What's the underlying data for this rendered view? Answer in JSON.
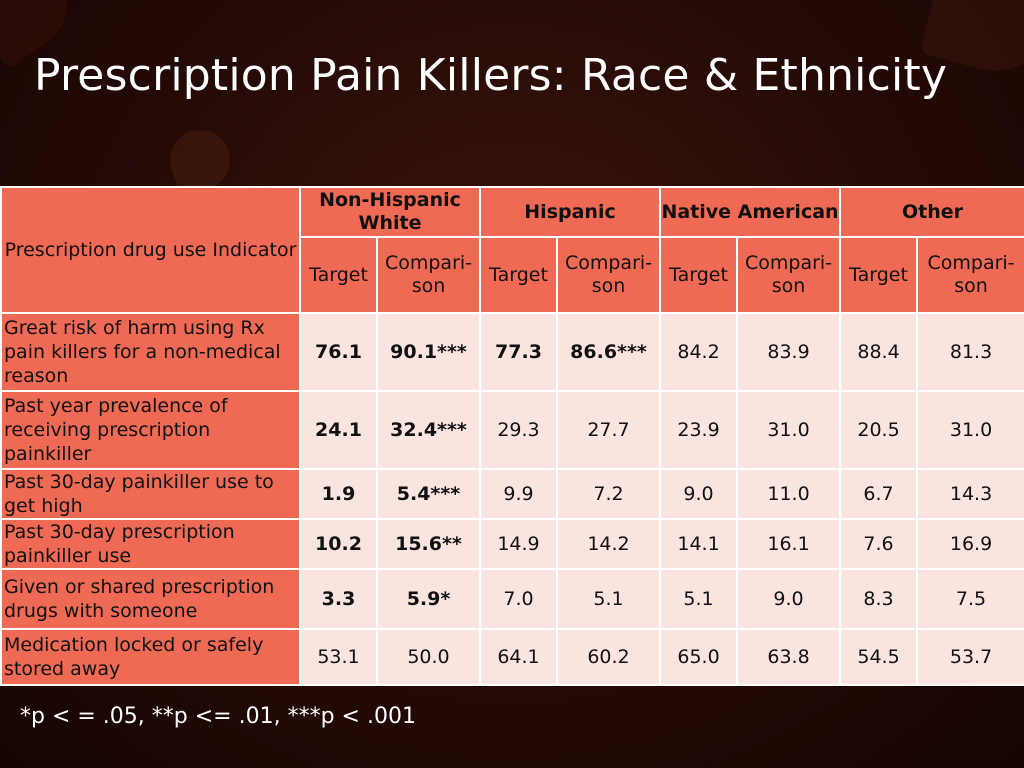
{
  "title": "Prescription Pain Killers:  Race & Ethnicity",
  "corner_label": "Prescription drug use Indicator",
  "groups": [
    {
      "label": "Non-Hispanic White"
    },
    {
      "label": "Hispanic"
    },
    {
      "label": "Native American"
    },
    {
      "label": "Other"
    }
  ],
  "subheaders": {
    "target": "Target",
    "comparison": "Compari-son"
  },
  "rows": [
    {
      "indicator": "Great risk of harm using Rx pain killers for a non-medical reason",
      "values": [
        "76.1",
        "90.1***",
        "77.3",
        "86.6***",
        "84.2",
        "83.9",
        "88.4",
        "81.3"
      ],
      "bold": [
        true,
        true,
        true,
        true,
        false,
        false,
        false,
        false
      ]
    },
    {
      "indicator": "Past year prevalence of receiving prescription painkiller",
      "values": [
        "24.1",
        "32.4***",
        "29.3",
        "27.7",
        "23.9",
        "31.0",
        "20.5",
        "31.0"
      ],
      "bold": [
        true,
        true,
        false,
        false,
        false,
        false,
        false,
        false
      ]
    },
    {
      "indicator": "Past 30-day painkiller use to get high",
      "values": [
        "1.9",
        "5.4***",
        "9.9",
        "7.2",
        "9.0",
        "11.0",
        "6.7",
        "14.3"
      ],
      "bold": [
        true,
        true,
        false,
        false,
        false,
        false,
        false,
        false
      ]
    },
    {
      "indicator": "Past 30-day prescription painkiller use",
      "values": [
        "10.2",
        "15.6**",
        "14.9",
        "14.2",
        "14.1",
        "16.1",
        "7.6",
        "16.9"
      ],
      "bold": [
        true,
        true,
        false,
        false,
        false,
        false,
        false,
        false
      ]
    },
    {
      "indicator": "Given or shared prescription drugs with someone",
      "values": [
        "3.3",
        "5.9*",
        "7.0",
        "5.1",
        "5.1",
        "9.0",
        "8.3",
        "7.5"
      ],
      "bold": [
        true,
        true,
        false,
        false,
        false,
        false,
        false,
        false
      ]
    },
    {
      "indicator": "Medication locked or safely stored away",
      "values": [
        "53.1",
        "50.0",
        "64.1",
        "60.2",
        "65.0",
        "63.8",
        "54.5",
        "53.7"
      ],
      "bold": [
        false,
        false,
        false,
        false,
        false,
        false,
        false,
        false
      ]
    }
  ],
  "footnote": "*p < = .05, **p <= .01, ***p < .001",
  "colors": {
    "header_fill": "#ef6a55",
    "cell_fill": "#f9e4e0",
    "background": "#250a06",
    "text_light": "#ffffff"
  }
}
